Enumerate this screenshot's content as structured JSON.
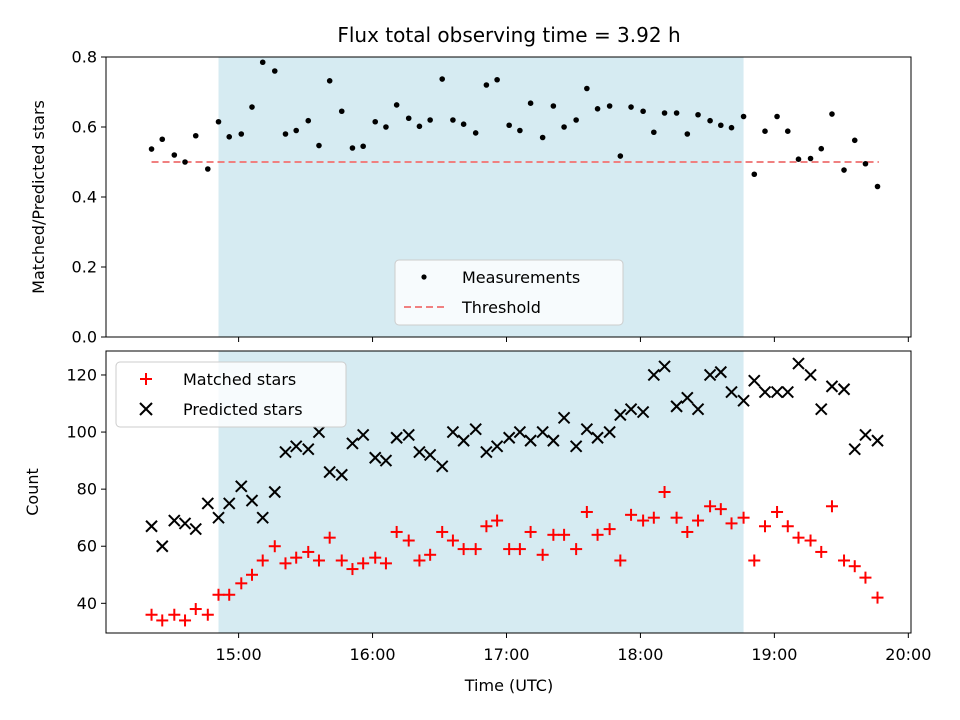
{
  "chart_data": {
    "title": "Flux total observing time = 3.92 h",
    "xlabel": "Time (UTC)",
    "x_ticks": [
      "15:00",
      "16:00",
      "17:00",
      "18:00",
      "19:00",
      "20:00"
    ],
    "x_tick_hours": [
      15,
      16,
      17,
      18,
      19,
      20
    ],
    "xlim_hours": [
      14.01,
      20.02
    ],
    "shaded_span_hours": [
      14.85,
      18.77
    ],
    "colors": {
      "measurements": "#000000",
      "threshold": "#f08080",
      "matched": "#ff0000",
      "predicted": "#000000",
      "shade": "#add8e6"
    },
    "top": {
      "type": "scatter",
      "ylabel": "Matched/Predicted stars",
      "ylim": [
        0,
        0.8
      ],
      "y_ticks": [
        "0.0",
        "0.2",
        "0.4",
        "0.6",
        "0.8"
      ],
      "y_tick_values": [
        0,
        0.2,
        0.4,
        0.6,
        0.8
      ],
      "legend": {
        "placement": "lower center",
        "entries": [
          "Measurements",
          "Threshold"
        ]
      },
      "threshold": {
        "name": "Threshold",
        "y": 0.5,
        "x_range": [
          14.35,
          19.78
        ]
      },
      "series": [
        {
          "name": "Measurements",
          "x": [
            14.35,
            14.43,
            14.52,
            14.6,
            14.68,
            14.77,
            14.85,
            14.93,
            15.02,
            15.1,
            15.18,
            15.27,
            15.35,
            15.43,
            15.52,
            15.6,
            15.68,
            15.77,
            15.85,
            15.93,
            16.02,
            16.1,
            16.18,
            16.27,
            16.35,
            16.43,
            16.52,
            16.6,
            16.68,
            16.77,
            16.85,
            16.93,
            17.02,
            17.1,
            17.18,
            17.27,
            17.35,
            17.43,
            17.52,
            17.6,
            17.68,
            17.77,
            17.85,
            17.93,
            18.02,
            18.1,
            18.18,
            18.27,
            18.35,
            18.43,
            18.52,
            18.6,
            18.68,
            18.77,
            18.85,
            18.93,
            19.02,
            19.1,
            19.18,
            19.27,
            19.35,
            19.43,
            19.52,
            19.6,
            19.68,
            19.77
          ],
          "y": [
            0.537,
            0.565,
            0.52,
            0.5,
            0.575,
            0.48,
            0.615,
            0.572,
            0.58,
            0.657,
            0.785,
            0.76,
            0.58,
            0.59,
            0.618,
            0.547,
            0.732,
            0.645,
            0.54,
            0.545,
            0.615,
            0.6,
            0.663,
            0.625,
            0.602,
            0.62,
            0.737,
            0.62,
            0.608,
            0.583,
            0.72,
            0.735,
            0.605,
            0.59,
            0.668,
            0.57,
            0.66,
            0.6,
            0.62,
            0.71,
            0.652,
            0.66,
            0.517,
            0.657,
            0.645,
            0.585,
            0.64,
            0.64,
            0.58,
            0.635,
            0.618,
            0.605,
            0.598,
            0.63,
            0.465,
            0.588,
            0.63,
            0.588,
            0.508,
            0.51,
            0.538,
            0.637,
            0.477,
            0.562,
            0.495,
            0.43
          ]
        }
      ]
    },
    "bottom": {
      "type": "scatter",
      "ylabel": "Count",
      "ylim": [
        29.6,
        128.4
      ],
      "y_ticks": [
        "40",
        "60",
        "80",
        "100",
        "120"
      ],
      "y_tick_values": [
        40,
        60,
        80,
        100,
        120
      ],
      "legend": {
        "placement": "top-left",
        "entries": [
          "Matched stars",
          "Predicted stars"
        ]
      },
      "series": [
        {
          "name": "Matched stars",
          "marker": "plus",
          "x": [
            14.35,
            14.43,
            14.52,
            14.6,
            14.68,
            14.77,
            14.85,
            14.93,
            15.02,
            15.1,
            15.18,
            15.27,
            15.35,
            15.43,
            15.52,
            15.6,
            15.68,
            15.77,
            15.85,
            15.93,
            16.02,
            16.1,
            16.18,
            16.27,
            16.35,
            16.43,
            16.52,
            16.6,
            16.68,
            16.77,
            16.85,
            16.93,
            17.02,
            17.1,
            17.18,
            17.27,
            17.35,
            17.43,
            17.52,
            17.6,
            17.68,
            17.77,
            17.85,
            17.93,
            18.02,
            18.1,
            18.18,
            18.27,
            18.35,
            18.43,
            18.52,
            18.6,
            18.68,
            18.77,
            18.85,
            18.93,
            19.02,
            19.1,
            19.18,
            19.27,
            19.35,
            19.43,
            19.52,
            19.6,
            19.68,
            19.77
          ],
          "y": [
            36,
            34,
            36,
            34,
            38,
            36,
            43,
            43,
            47,
            50,
            55,
            60,
            54,
            56,
            58,
            55,
            63,
            55,
            52,
            54,
            56,
            54,
            65,
            62,
            55,
            57,
            65,
            62,
            59,
            59,
            67,
            69,
            59,
            59,
            65,
            57,
            64,
            64,
            59,
            72,
            64,
            66,
            55,
            71,
            69,
            70,
            79,
            70,
            65,
            69,
            74,
            73,
            68,
            70,
            55,
            67,
            72,
            67,
            63,
            62,
            58,
            74,
            55,
            53,
            49,
            42
          ]
        },
        {
          "name": "Predicted stars",
          "marker": "x",
          "x": [
            14.35,
            14.43,
            14.52,
            14.6,
            14.68,
            14.77,
            14.85,
            14.93,
            15.02,
            15.1,
            15.18,
            15.27,
            15.35,
            15.43,
            15.52,
            15.6,
            15.68,
            15.77,
            15.85,
            15.93,
            16.02,
            16.1,
            16.18,
            16.27,
            16.35,
            16.43,
            16.52,
            16.6,
            16.68,
            16.77,
            16.85,
            16.93,
            17.02,
            17.1,
            17.18,
            17.27,
            17.35,
            17.43,
            17.52,
            17.6,
            17.68,
            17.77,
            17.85,
            17.93,
            18.02,
            18.1,
            18.18,
            18.27,
            18.35,
            18.43,
            18.52,
            18.6,
            18.68,
            18.77,
            18.85,
            18.93,
            19.02,
            19.1,
            19.18,
            19.27,
            19.35,
            19.43,
            19.52,
            19.6,
            19.68,
            19.77
          ],
          "y": [
            67,
            60,
            69,
            68,
            66,
            75,
            70,
            75,
            81,
            76,
            70,
            79,
            93,
            95,
            94,
            100,
            86,
            85,
            96,
            99,
            91,
            90,
            98,
            99,
            93,
            92,
            88,
            100,
            97,
            101,
            93,
            95,
            98,
            100,
            97,
            100,
            97,
            105,
            95,
            101,
            98,
            100,
            106,
            108,
            107,
            120,
            123,
            109,
            112,
            108,
            120,
            121,
            114,
            111,
            118,
            114,
            114,
            114,
            124,
            120,
            108,
            116,
            115,
            94,
            99,
            97
          ]
        }
      ]
    }
  }
}
